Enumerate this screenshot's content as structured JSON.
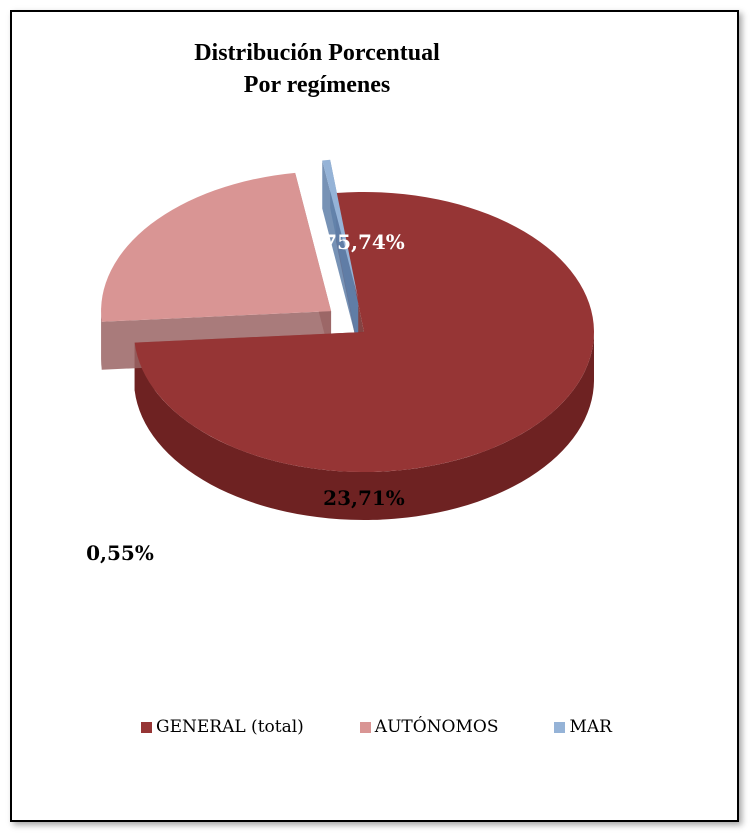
{
  "chart_data": {
    "type": "pie",
    "title": [
      "Distribución Porcentual",
      "Por regímenes"
    ],
    "slices": [
      {
        "name": "GENERAL (total)",
        "value": 75.74,
        "label": "75,74%",
        "color": "#963535",
        "side_color": "#6e2222",
        "exploded": false
      },
      {
        "name": "AUTÓNOMOS",
        "value": 23.71,
        "label": "23,71%",
        "color": "#d99594",
        "side_color": "#9a6464",
        "exploded": true
      },
      {
        "name": "MAR",
        "value": 0.55,
        "label": "0,55%",
        "color": "#95b3d7",
        "side_color": "#5f7fa8",
        "exploded": true
      }
    ],
    "legend_position": "bottom",
    "style": "3d"
  }
}
